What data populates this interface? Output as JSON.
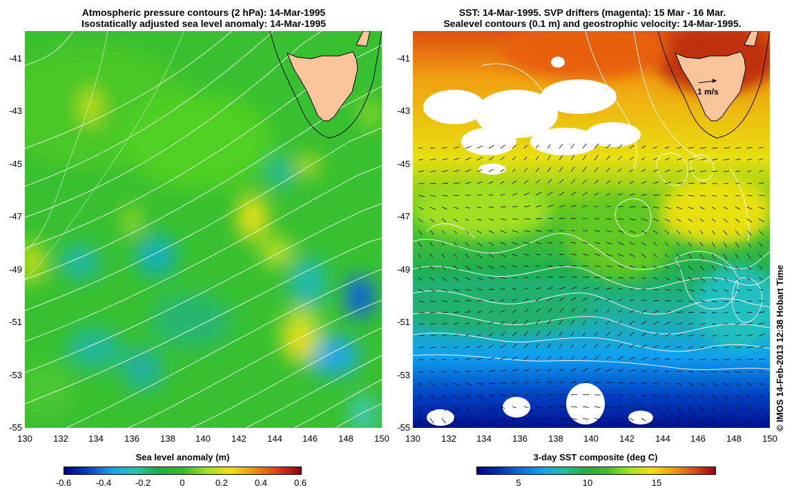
{
  "left": {
    "title_line1": "Atmospheric pressure contours (2 hPa): 14-Mar-1995",
    "title_line2": "Isostatically adjusted sea level anomaly: 14-Mar-1995",
    "colorbar_label": "Sea level anomaly (m)",
    "colorbar_ticks": [
      "-0.6",
      "-0.4",
      "-0.2",
      "0",
      "0.2",
      "0.4",
      "0.6"
    ],
    "colormap": [
      "#00008f",
      "#0040c0",
      "#18a0f0",
      "#20c8a8",
      "#18b040",
      "#30c020",
      "#a0e020",
      "#f0e010",
      "#f09010",
      "#e04010",
      "#900010"
    ]
  },
  "right": {
    "title_line1": "SST: 14-Mar-1995. SVP drifters (magenta): 15 Mar - 16 Mar.",
    "title_line2": "Sealevel contours (0.1 m) and geostrophic velocity: 14-Mar-1995.",
    "colorbar_label": "3-day SST composite (deg C)",
    "colorbar_ticks": [
      "5",
      "10",
      "15"
    ],
    "velocity_scale_label": "1 m/s",
    "colormap": [
      "#00008f",
      "#0030b0",
      "#0070e0",
      "#10a0f0",
      "#20c0a0",
      "#20b040",
      "#40c020",
      "#a0e020",
      "#f0e010",
      "#f0a010",
      "#e05010",
      "#a00010"
    ]
  },
  "axes": {
    "x_ticks": [
      "130",
      "132",
      "134",
      "136",
      "138",
      "140",
      "142",
      "144",
      "146",
      "148",
      "150"
    ],
    "y_ticks": [
      "-41",
      "-43",
      "-45",
      "-47",
      "-49",
      "-51",
      "-53",
      "-55"
    ]
  },
  "colors": {
    "land": "#f8c49a",
    "cloud_mask": "#ffffff",
    "contour": "#ffffff",
    "coast_line": "#000000"
  },
  "credit": "© IMOS 14-Feb-2013 12:38 Hobart Time"
}
